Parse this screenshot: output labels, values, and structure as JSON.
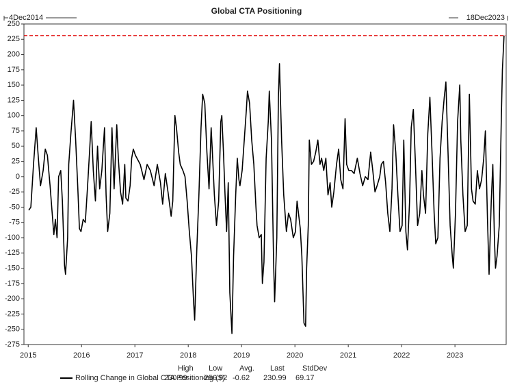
{
  "chart_data": {
    "type": "line",
    "title": "Global CTA Positioning",
    "start_label": "4Dec2014",
    "end_label": "18Dec2023",
    "xlim": [
      2014.92,
      2023.96
    ],
    "xticks": [
      2015,
      2016,
      2017,
      2018,
      2019,
      2020,
      2021,
      2022,
      2023
    ],
    "ylim": [
      -275,
      250
    ],
    "yticks": [
      -275,
      -250,
      -225,
      -200,
      -175,
      -150,
      -125,
      -100,
      -75,
      -50,
      -25,
      0,
      25,
      50,
      75,
      100,
      125,
      150,
      175,
      200,
      225,
      250
    ],
    "reference_line": {
      "value": 230.99,
      "color": "#e00000"
    },
    "x": [
      2015.01,
      2015.05,
      2015.1,
      2015.15,
      2015.19,
      2015.23,
      2015.28,
      2015.32,
      2015.36,
      2015.41,
      2015.45,
      2015.48,
      2015.51,
      2015.54,
      2015.57,
      2015.61,
      2015.64,
      2015.68,
      2015.7,
      2015.74,
      2015.76,
      2015.8,
      2015.85,
      2015.89,
      2015.93,
      2015.96,
      2015.99,
      2016.03,
      2016.07,
      2016.11,
      2016.15,
      2016.18,
      2016.22,
      2016.26,
      2016.3,
      2016.34,
      2016.38,
      2016.43,
      2016.46,
      2016.49,
      2016.53,
      2016.57,
      2016.61,
      2016.66,
      2016.69,
      2016.73,
      2016.77,
      2016.81,
      2016.83,
      2016.87,
      2016.91,
      2016.94,
      2016.97,
      2017.01,
      2017.04,
      2017.1,
      2017.17,
      2017.23,
      2017.29,
      2017.36,
      2017.42,
      2017.48,
      2017.52,
      2017.57,
      2017.62,
      2017.68,
      2017.71,
      2017.75,
      2017.78,
      2017.82,
      2017.85,
      2017.9,
      2017.94,
      2017.98,
      2018.02,
      2018.06,
      2018.1,
      2018.12,
      2018.16,
      2018.2,
      2018.24,
      2018.27,
      2018.31,
      2018.35,
      2018.39,
      2018.43,
      2018.45,
      2018.49,
      2018.53,
      2018.57,
      2018.61,
      2018.63,
      2018.66,
      2018.69,
      2018.72,
      2018.75,
      2018.78,
      2018.82,
      2018.85,
      2018.89,
      2018.92,
      2018.95,
      2018.97,
      2019.01,
      2019.05,
      2019.09,
      2019.11,
      2019.15,
      2019.19,
      2019.23,
      2019.27,
      2019.29,
      2019.33,
      2019.37,
      2019.39,
      2019.42,
      2019.46,
      2019.5,
      2019.52,
      2019.56,
      2019.6,
      2019.62,
      2019.66,
      2019.69,
      2019.71,
      2019.75,
      2019.79,
      2019.84,
      2019.88,
      2019.92,
      2019.97,
      2020.01,
      2020.04,
      2020.1,
      2020.13,
      2020.17,
      2020.2,
      2020.22,
      2020.25,
      2020.27,
      2020.31,
      2020.35,
      2020.39,
      2020.43,
      2020.47,
      2020.5,
      2020.54,
      2020.58,
      2020.62,
      2020.66,
      2020.69,
      2020.73,
      2020.78,
      2020.82,
      2020.86,
      2020.9,
      2020.94,
      2020.97,
      2021.01,
      2021.06,
      2021.11,
      2021.17,
      2021.22,
      2021.27,
      2021.32,
      2021.37,
      2021.42,
      2021.46,
      2021.5,
      2021.54,
      2021.59,
      2021.62,
      2021.66,
      2021.7,
      2021.74,
      2021.78,
      2021.82,
      2021.85,
      2021.89,
      2021.93,
      2021.97,
      2022.01,
      2022.04,
      2022.08,
      2022.11,
      2022.15,
      2022.18,
      2022.22,
      2022.26,
      2022.3,
      2022.34,
      2022.38,
      2022.41,
      2022.45,
      2022.49,
      2022.53,
      2022.57,
      2022.61,
      2022.64,
      2022.68,
      2022.72,
      2022.76,
      2022.8,
      2022.83,
      2022.87,
      2022.91,
      2022.95,
      2022.97,
      2023.01,
      2023.05,
      2023.09,
      2023.11,
      2023.15,
      2023.19,
      2023.23,
      2023.27,
      2023.31,
      2023.34,
      2023.38,
      2023.42,
      2023.46,
      2023.5,
      2023.54,
      2023.57,
      2023.61,
      2023.64,
      2023.68,
      2023.71,
      2023.74,
      2023.76,
      2023.79,
      2023.83,
      2023.87,
      2023.89,
      2023.92
    ],
    "series": [
      {
        "name": "Rolling Change in Global CTA Positioning ($)",
        "color": "#000000",
        "values": [
          -55,
          -50,
          20,
          80,
          30,
          -15,
          10,
          45,
          35,
          -15,
          -60,
          -95,
          -70,
          -100,
          0,
          10,
          -40,
          -145,
          -160,
          -100,
          20,
          70,
          125,
          60,
          -20,
          -85,
          -90,
          -70,
          -75,
          -20,
          40,
          90,
          10,
          -40,
          50,
          -20,
          10,
          80,
          -30,
          -90,
          -60,
          80,
          -20,
          85,
          30,
          -25,
          -45,
          20,
          -35,
          -40,
          -15,
          30,
          45,
          35,
          30,
          20,
          -5,
          20,
          10,
          -15,
          20,
          -10,
          -45,
          5,
          -25,
          -65,
          -40,
          100,
          80,
          40,
          20,
          10,
          0,
          -40,
          -90,
          -130,
          -205,
          -235,
          -120,
          -30,
          80,
          135,
          120,
          40,
          -20,
          80,
          45,
          -30,
          -80,
          -40,
          90,
          100,
          40,
          -30,
          -90,
          -10,
          -190,
          -256.92,
          -130,
          -30,
          30,
          -5,
          -15,
          10,
          60,
          110,
          140,
          120,
          60,
          20,
          -50,
          -80,
          -100,
          -95,
          -175,
          -140,
          30,
          90,
          140,
          60,
          -140,
          -205,
          -100,
          130,
          185,
          60,
          -30,
          -90,
          -60,
          -70,
          -100,
          -90,
          -40,
          -85,
          -130,
          -240,
          -245,
          -150,
          -80,
          60,
          20,
          25,
          40,
          60,
          20,
          30,
          10,
          30,
          -30,
          -10,
          -50,
          -25,
          20,
          45,
          -5,
          -20,
          95,
          20,
          10,
          10,
          5,
          30,
          5,
          -15,
          0,
          -5,
          40,
          10,
          -25,
          -15,
          0,
          20,
          25,
          -10,
          -60,
          -90,
          -20,
          85,
          40,
          -30,
          -90,
          -80,
          60,
          -90,
          -120,
          -40,
          80,
          110,
          20,
          -80,
          -60,
          10,
          -30,
          -60,
          70,
          130,
          40,
          -60,
          -110,
          -100,
          30,
          90,
          130,
          155,
          40,
          -80,
          -130,
          -150,
          -60,
          90,
          150,
          60,
          -30,
          -90,
          -80,
          135,
          -20,
          -40,
          -45,
          10,
          -20,
          -5,
          30,
          75,
          -70,
          -160,
          -40,
          20,
          -100,
          -150,
          -130,
          -80,
          100,
          175,
          230.99
        ]
      }
    ],
    "stats": [
      {
        "label": "High",
        "value": 230.99
      },
      {
        "label": "Low",
        "value": -256.92
      },
      {
        "label": "Avg.",
        "value": -0.62
      },
      {
        "label": "Last",
        "value": 230.99
      },
      {
        "label": "StdDev",
        "value": 69.17
      }
    ]
  }
}
